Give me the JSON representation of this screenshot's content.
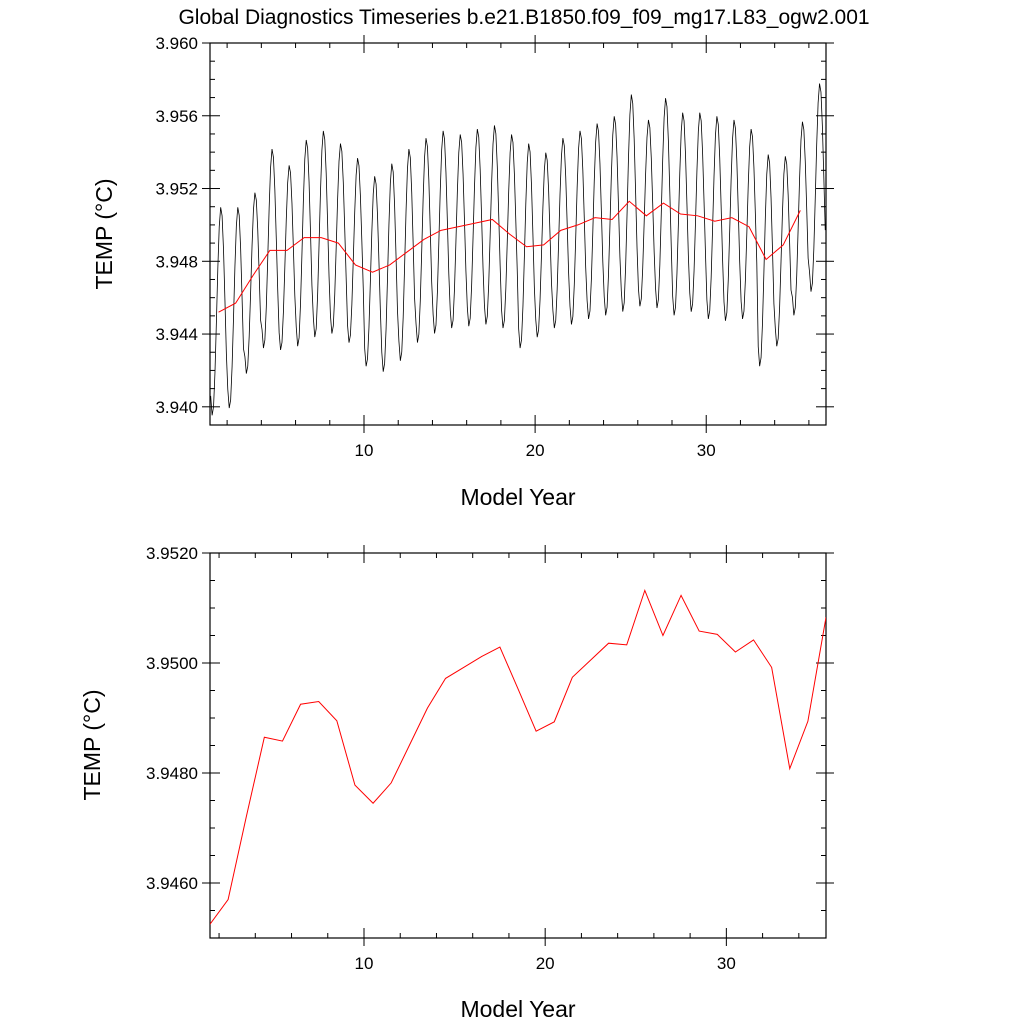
{
  "title": "Global Diagnostics Timeseries b.e21.B1850.f09_f09_mg17.L83_ogw2.001",
  "colors": {
    "monthly": "#000000",
    "annual": "#ff0000",
    "axes": "#000000"
  },
  "chart_data": [
    {
      "type": "line",
      "xlabel": "Model Year",
      "ylabel": "TEMP (°C)",
      "xlim": [
        1,
        37
      ],
      "ylim": [
        3.939,
        3.96
      ],
      "xticks": [
        10,
        20,
        30
      ],
      "yticks": [
        3.94,
        3.944,
        3.948,
        3.952,
        3.956,
        3.96
      ],
      "ytick_labels": [
        "3.940",
        "3.944",
        "3.948",
        "3.952",
        "3.956",
        "3.960"
      ],
      "series": [
        {
          "kind": "monthly",
          "x_start": 1.04,
          "x_step": 0.08333,
          "yearly_max": [
            3.951,
            3.951,
            3.9518,
            3.9542,
            3.9533,
            3.9547,
            3.9552,
            3.9545,
            3.9537,
            3.9527,
            3.9534,
            3.9542,
            3.9548,
            3.9552,
            3.955,
            3.9553,
            3.9555,
            3.955,
            3.9545,
            3.954,
            3.9548,
            3.9552,
            3.9556,
            3.956,
            3.9572,
            3.9558,
            3.957,
            3.9562,
            3.9562,
            3.956,
            3.9558,
            3.9553,
            3.9539,
            3.9538,
            3.9557,
            3.9578
          ],
          "yearly_min": [
            3.9395,
            3.9399,
            3.9418,
            3.9432,
            3.9431,
            3.9433,
            3.9438,
            3.944,
            3.9435,
            3.9422,
            3.9419,
            3.9425,
            3.9435,
            3.944,
            3.9443,
            3.9444,
            3.9445,
            3.9443,
            3.9432,
            3.9438,
            3.9443,
            3.9445,
            3.9448,
            3.945,
            3.9452,
            3.9455,
            3.9454,
            3.945,
            3.9452,
            3.9448,
            3.9447,
            3.9448,
            3.9422,
            3.9433,
            3.945,
            3.9463
          ]
        },
        {
          "kind": "annual",
          "x": [
            1.5,
            2.5,
            3.5,
            4.5,
            5.5,
            6.5,
            7.5,
            8.5,
            9.5,
            10.5,
            11.5,
            12.5,
            13.5,
            14.5,
            15.5,
            16.5,
            17.5,
            18.5,
            19.5,
            20.5,
            21.5,
            22.5,
            23.5,
            24.5,
            25.5,
            26.5,
            27.5,
            28.5,
            29.5,
            30.5,
            31.5,
            32.5,
            33.5,
            34.5,
            35.5
          ],
          "y": [
            3.9452,
            3.9457,
            3.9472,
            3.9486,
            3.9486,
            3.9493,
            3.9493,
            3.949,
            3.9478,
            3.9474,
            3.9478,
            3.9485,
            3.9492,
            3.9497,
            3.9499,
            3.9501,
            3.9503,
            3.9495,
            3.9488,
            3.9489,
            3.9497,
            3.95,
            3.9504,
            3.9503,
            3.9513,
            3.9505,
            3.9512,
            3.9506,
            3.9505,
            3.9502,
            3.9504,
            3.9499,
            3.9481,
            3.9489,
            3.9508
          ]
        }
      ]
    },
    {
      "type": "line",
      "xlabel": "Model Year",
      "ylabel": "TEMP (°C)",
      "xlim": [
        1.5,
        35.5
      ],
      "ylim": [
        3.945,
        3.952
      ],
      "xticks": [
        10,
        20,
        30
      ],
      "yticks": [
        3.946,
        3.948,
        3.95,
        3.952
      ],
      "ytick_labels": [
        "3.9460",
        "3.9480",
        "3.9500",
        "3.9520"
      ],
      "series": [
        {
          "kind": "annual",
          "x": [
            1.5,
            2.5,
            3.5,
            4.5,
            5.5,
            6.5,
            7.5,
            8.5,
            9.5,
            10.5,
            11.5,
            12.5,
            13.5,
            14.5,
            15.5,
            16.5,
            17.5,
            18.5,
            19.5,
            20.5,
            21.5,
            22.5,
            23.5,
            24.5,
            25.5,
            26.5,
            27.5,
            28.5,
            29.5,
            30.5,
            31.5,
            32.5,
            33.5,
            34.5,
            35.5
          ],
          "y": [
            3.94525,
            3.9457,
            3.9472,
            3.94865,
            3.94858,
            3.94925,
            3.9493,
            3.94895,
            3.94778,
            3.94745,
            3.94782,
            3.9485,
            3.94918,
            3.94972,
            3.94992,
            3.95012,
            3.95029,
            3.94953,
            3.94876,
            3.94893,
            3.94974,
            3.95005,
            3.95036,
            3.95033,
            3.95132,
            3.9505,
            3.95123,
            3.95058,
            3.95052,
            3.9502,
            3.95042,
            3.94992,
            3.94808,
            3.94894,
            3.95083
          ]
        }
      ]
    }
  ]
}
